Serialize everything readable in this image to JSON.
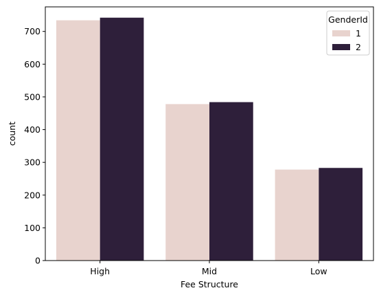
{
  "chart_data": {
    "type": "bar",
    "title": "",
    "xlabel": "Fee Structure",
    "ylabel": "count",
    "categories": [
      "High",
      "Mid",
      "Low"
    ],
    "series": [
      {
        "name": "1",
        "values": [
          734,
          478,
          278
        ],
        "color": "#e8d3ce"
      },
      {
        "name": "2",
        "values": [
          742,
          484,
          283
        ],
        "color": "#2e1f3a"
      }
    ],
    "ylim": [
      0,
      775
    ],
    "yticks": [
      0,
      100,
      200,
      300,
      400,
      500,
      600,
      700
    ],
    "grid": false,
    "legend": {
      "title": "GenderId",
      "placement": "top-right"
    }
  }
}
